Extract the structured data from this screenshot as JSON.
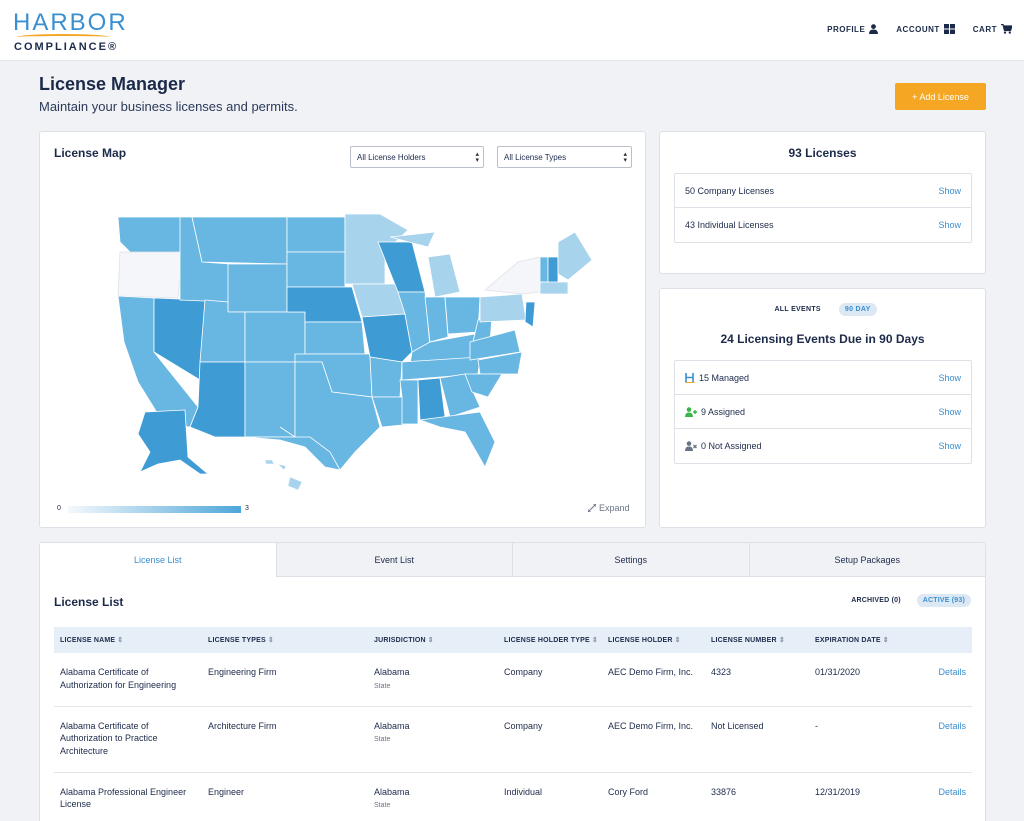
{
  "header": {
    "logo_top": "HARBOR",
    "logo_bottom": "COMPLIANCE®",
    "nav": [
      {
        "label": "PROFILE",
        "icon": "user-icon"
      },
      {
        "label": "ACCOUNT",
        "icon": "grid-icon"
      },
      {
        "label": "CART",
        "icon": "cart-icon"
      }
    ]
  },
  "page": {
    "title": "License Manager",
    "subtitle": "Maintain your business licenses and permits.",
    "add_button": "+ Add License"
  },
  "map_card": {
    "title": "License Map",
    "holders_select": "All License Holders",
    "types_select": "All License Types",
    "legend_min": "0",
    "legend_max": "3",
    "expand_label": "Expand",
    "colors": {
      "zero": "#f4f6f9",
      "low": "#a8d3ec",
      "mid": "#68b6e2",
      "high": "#3e9bd4"
    }
  },
  "licenses_card": {
    "title": "93 Licenses",
    "rows": [
      {
        "label": "50 Company Licenses",
        "action": "Show"
      },
      {
        "label": "43 Individual Licenses",
        "action": "Show"
      }
    ]
  },
  "events_card": {
    "tab_all": "ALL EVENTS",
    "tab_90": "90 DAY",
    "title": "24 Licensing Events Due in 90 Days",
    "rows": [
      {
        "label": "15 Managed",
        "icon": "harbor-h-icon",
        "action": "Show"
      },
      {
        "label": "9 Assigned",
        "icon": "user-plus-icon",
        "action": "Show"
      },
      {
        "label": "0 Not Assigned",
        "icon": "user-x-icon",
        "action": "Show"
      }
    ]
  },
  "bottom_tabs": [
    "License List",
    "Event List",
    "Settings",
    "Setup Packages"
  ],
  "license_list": {
    "title": "License List",
    "filter_archived": "ARCHIVED (0)",
    "filter_active": "ACTIVE (93)",
    "columns": [
      "LICENSE NAME",
      "LICENSE TYPES",
      "JURISDICTION",
      "LICENSE HOLDER TYPE",
      "LICENSE HOLDER",
      "LICENSE NUMBER",
      "EXPIRATION DATE"
    ],
    "rows": [
      {
        "name": "Alabama Certificate of Authorization for Engineering",
        "type": "Engineering Firm",
        "jurisdiction": "Alabama",
        "jurisdiction_level": "State",
        "holder_type": "Company",
        "holder": "AEC Demo Firm, Inc.",
        "number": "4323",
        "expiration": "01/31/2020",
        "action": "Details"
      },
      {
        "name": "Alabama Certificate of Authorization to Practice Architecture",
        "type": "Architecture Firm",
        "jurisdiction": "Alabama",
        "jurisdiction_level": "State",
        "holder_type": "Company",
        "holder": "AEC Demo Firm, Inc.",
        "number": "Not Licensed",
        "expiration": "-",
        "action": "Details"
      },
      {
        "name": "Alabama Professional Engineer License",
        "type": "Engineer",
        "jurisdiction": "Alabama",
        "jurisdiction_level": "State",
        "holder_type": "Individual",
        "holder": "Cory Ford",
        "number": "33876",
        "expiration": "12/31/2019",
        "action": "Details"
      }
    ]
  }
}
